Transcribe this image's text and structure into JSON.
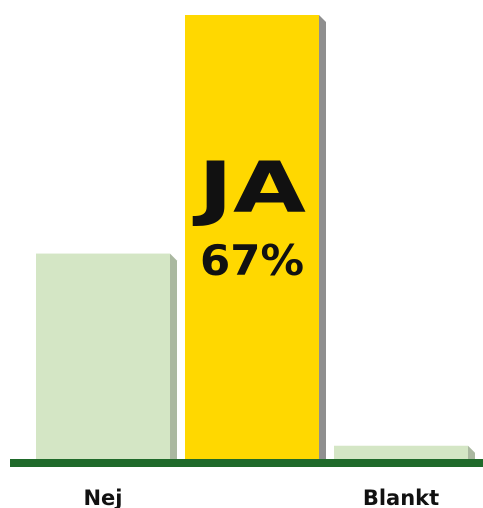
{
  "chart_data": {
    "type": "bar",
    "categories": [
      "Nej",
      "JA",
      "Blankt"
    ],
    "values": [
      31,
      67,
      2
    ],
    "unit": "%",
    "ylim": [
      0,
      67
    ],
    "grid": false,
    "legend": "none",
    "visible_category_labels": [
      "Nej",
      "",
      "Blankt"
    ],
    "highlight": {
      "category": "JA",
      "label": "JA",
      "value_label": "67%"
    },
    "colors": {
      "bar": "#d4e6c5",
      "bar_shadow": "#aab8a0",
      "highlight_bar": "#ffd800",
      "highlight_shadow": "#8f8f8f",
      "baseline": "#1f6a2a",
      "text": "#111111"
    }
  }
}
